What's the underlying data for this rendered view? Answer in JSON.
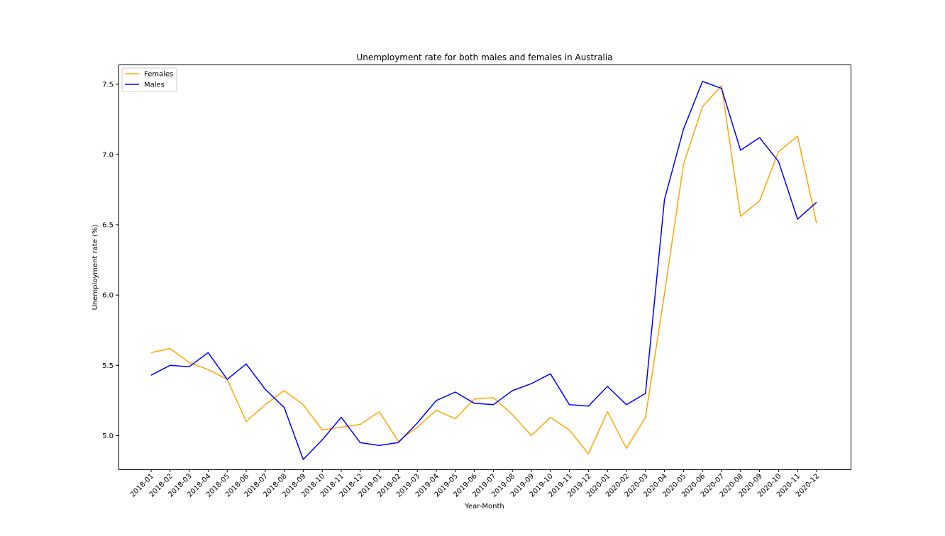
{
  "chart_data": {
    "type": "line",
    "title": "Unemployment rate for both males and females in Australia",
    "xlabel": "Year-Month",
    "ylabel": "Unemployment rate (%)",
    "ylim": [
      4.76,
      7.64
    ],
    "yticks": [
      "5.0",
      "5.5",
      "6.0",
      "6.5",
      "7.0",
      "7.5"
    ],
    "grid": false,
    "legend_position": "top-left",
    "categories": [
      "2018-01",
      "2018-02",
      "2018-03",
      "2018-04",
      "2018-05",
      "2018-06",
      "2018-07",
      "2018-08",
      "2018-09",
      "2018-10",
      "2018-11",
      "2018-12",
      "2019-01",
      "2019-02",
      "2019-03",
      "2019-04",
      "2019-05",
      "2019-06",
      "2019-07",
      "2019-08",
      "2019-09",
      "2019-10",
      "2019-11",
      "2019-12",
      "2020-01",
      "2020-02",
      "2020-03",
      "2020-04",
      "2020-05",
      "2020-06",
      "2020-07",
      "2020-08",
      "2020-09",
      "2020-10",
      "2020-11",
      "2020-12"
    ],
    "series": [
      {
        "name": "Females",
        "color": "#ffa500",
        "values": [
          5.59,
          5.62,
          5.52,
          5.47,
          5.4,
          5.1,
          5.22,
          5.32,
          5.22,
          5.04,
          5.06,
          5.08,
          5.17,
          4.96,
          5.06,
          5.18,
          5.12,
          5.26,
          5.27,
          5.15,
          5.0,
          5.13,
          5.04,
          4.87,
          5.17,
          4.91,
          5.13,
          6.01,
          6.93,
          7.34,
          7.49,
          6.56,
          6.67,
          7.02,
          7.13,
          6.51
        ]
      },
      {
        "name": "Males",
        "color": "#0000ff",
        "values": [
          5.43,
          5.5,
          5.49,
          5.59,
          5.4,
          5.51,
          5.33,
          5.2,
          4.83,
          4.97,
          5.13,
          4.95,
          4.93,
          4.95,
          5.09,
          5.25,
          5.31,
          5.23,
          5.22,
          5.32,
          5.37,
          5.44,
          5.22,
          5.21,
          5.35,
          5.22,
          5.3,
          6.68,
          7.18,
          7.52,
          7.47,
          7.03,
          7.12,
          6.95,
          6.54,
          6.66
        ]
      }
    ]
  }
}
